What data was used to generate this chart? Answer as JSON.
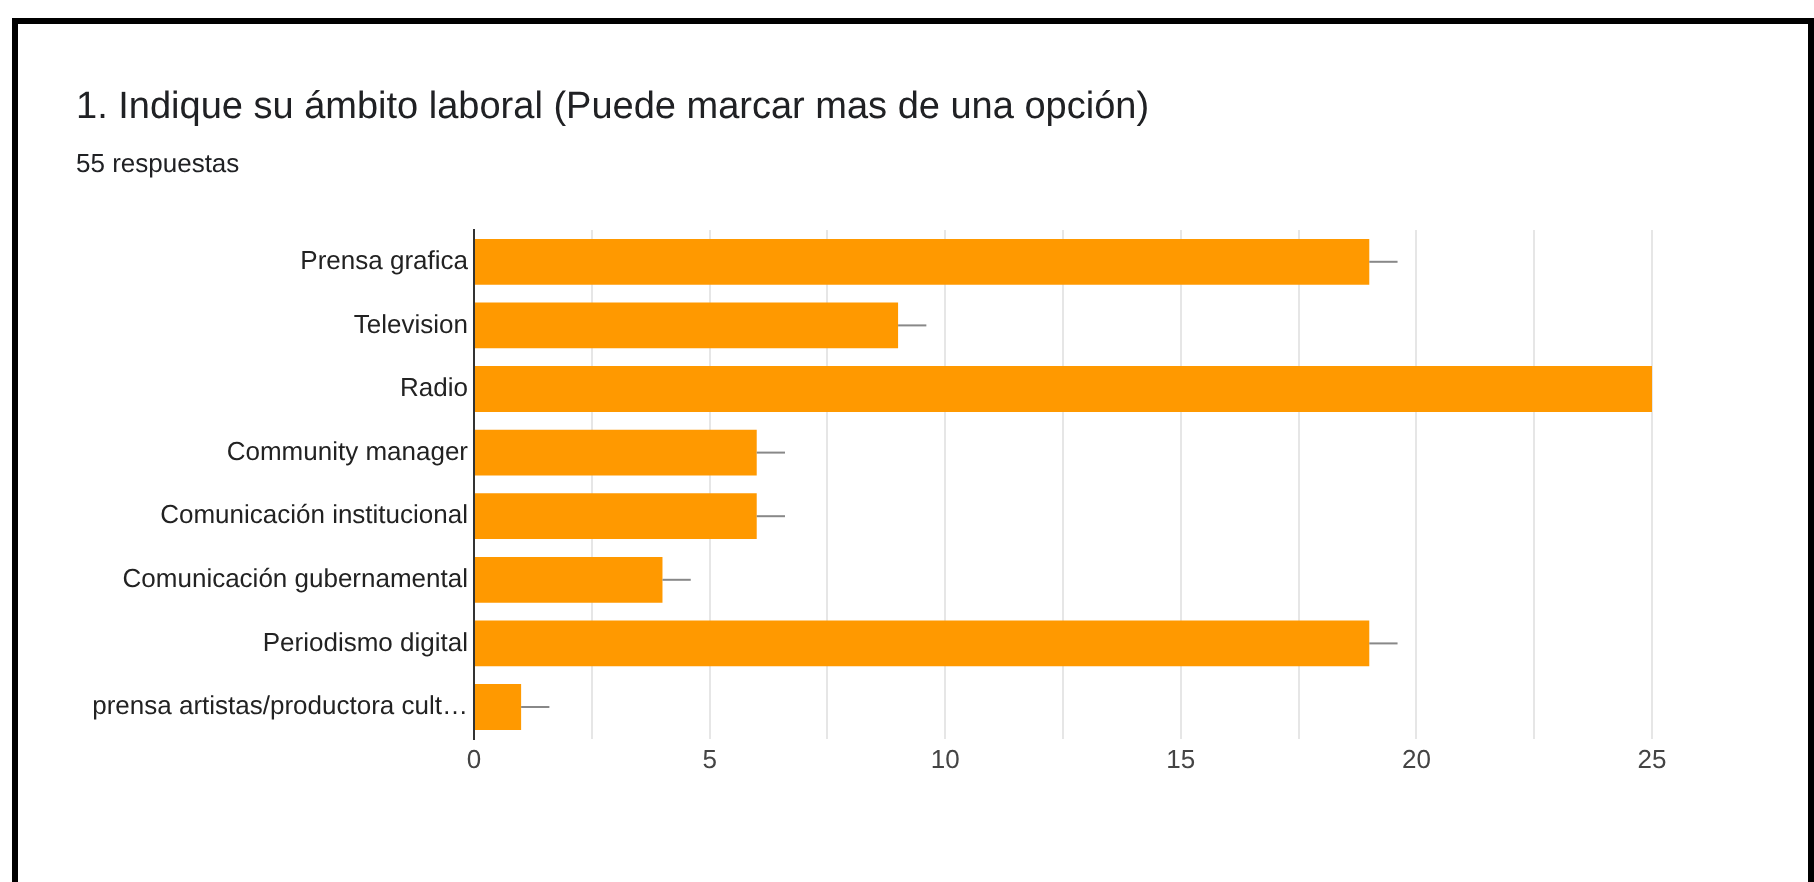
{
  "chart_data": {
    "type": "bar",
    "orientation": "horizontal",
    "title": "1. Indique su ámbito laboral (Puede marcar mas de una opción)",
    "subtitle": "55 respuestas",
    "categories": [
      "Prensa grafica",
      "Television",
      "Radio",
      "Community manager",
      "Comunicación institucional",
      "Comunicación gubernamental",
      "Periodismo digital",
      "prensa artistas/productora cult…"
    ],
    "values": [
      19,
      9,
      25,
      6,
      6,
      4,
      19,
      1
    ],
    "errors": [
      [
        19,
        19.6
      ],
      [
        9,
        9.6
      ],
      null,
      [
        6,
        6.6
      ],
      [
        6,
        6.6
      ],
      [
        4,
        4.6
      ],
      [
        19,
        19.6
      ],
      [
        1,
        1.6
      ]
    ],
    "color": "#ff9900",
    "xlim": [
      0,
      25
    ],
    "xticks": [
      0,
      {
        "value": 2.5,
        "label": null
      },
      5,
      {
        "value": 7.5,
        "label": null
      },
      10,
      {
        "value": 12.5,
        "label": null
      },
      15,
      {
        "value": 17.5,
        "label": null
      },
      20,
      {
        "value": 22.5,
        "label": null
      },
      25
    ],
    "grid": "x",
    "legend": false
  }
}
